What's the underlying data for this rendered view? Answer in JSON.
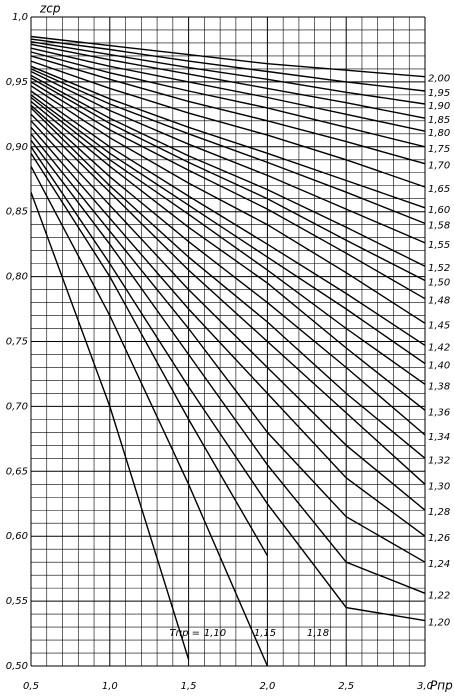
{
  "chart_data": {
    "type": "line",
    "y_label": "zср",
    "x_label": "Pпр",
    "annotation": "Tпр =",
    "x": [
      0.5,
      1.0,
      1.5,
      2.0,
      2.5,
      3.0
    ],
    "xlim": [
      0.5,
      3.0
    ],
    "xticks": [
      {
        "value": 0.5,
        "label": "0,5"
      },
      {
        "value": 1.0,
        "label": "1,0"
      },
      {
        "value": 1.5,
        "label": "1,5"
      },
      {
        "value": 2.0,
        "label": "2,0"
      },
      {
        "value": 2.5,
        "label": "2,5"
      },
      {
        "value": 3.0,
        "label": "3,0"
      }
    ],
    "ylim": [
      0.5,
      1.0
    ],
    "yticks": [
      {
        "value": 0.5,
        "label": "0,50"
      },
      {
        "value": 0.55,
        "label": "0,55"
      },
      {
        "value": 0.6,
        "label": "0,60"
      },
      {
        "value": 0.65,
        "label": "0,65"
      },
      {
        "value": 0.7,
        "label": "0,70"
      },
      {
        "value": 0.75,
        "label": "0,75"
      },
      {
        "value": 0.8,
        "label": "0,80"
      },
      {
        "value": 0.85,
        "label": "0,85"
      },
      {
        "value": 0.9,
        "label": "0,90"
      },
      {
        "value": 0.95,
        "label": "0,95"
      },
      {
        "value": 1.0,
        "label": "1,0"
      }
    ],
    "grid": true,
    "series": [
      {
        "name": "2,00",
        "color": "#000",
        "values": [
          0.985,
          0.978,
          0.971,
          0.964,
          0.959,
          0.954
        ]
      },
      {
        "name": "1,95",
        "color": "#000",
        "values": [
          0.983,
          0.975,
          0.966,
          0.958,
          0.95,
          0.943
        ]
      },
      {
        "name": "1,90",
        "color": "#000",
        "values": [
          0.981,
          0.971,
          0.961,
          0.952,
          0.942,
          0.933
        ]
      },
      {
        "name": "1,85",
        "color": "#000",
        "values": [
          0.979,
          0.967,
          0.956,
          0.945,
          0.934,
          0.922
        ]
      },
      {
        "name": "1,80",
        "color": "#000",
        "values": [
          0.976,
          0.962,
          0.95,
          0.938,
          0.925,
          0.912
        ]
      },
      {
        "name": "1,75",
        "color": "#000",
        "values": [
          0.973,
          0.957,
          0.943,
          0.93,
          0.915,
          0.9
        ]
      },
      {
        "name": "1,70",
        "color": "#000",
        "values": [
          0.97,
          0.952,
          0.935,
          0.92,
          0.904,
          0.887
        ]
      },
      {
        "name": "1,65",
        "color": "#000",
        "values": [
          0.966,
          0.945,
          0.926,
          0.909,
          0.89,
          0.869
        ]
      },
      {
        "name": "1,60",
        "color": "#000",
        "values": [
          0.962,
          0.937,
          0.915,
          0.895,
          0.874,
          0.853
        ]
      },
      {
        "name": "1,58",
        "color": "#000",
        "values": [
          0.96,
          0.933,
          0.91,
          0.888,
          0.865,
          0.841
        ]
      },
      {
        "name": "1,55",
        "color": "#000",
        "values": [
          0.958,
          0.928,
          0.902,
          0.878,
          0.852,
          0.826
        ]
      },
      {
        "name": "1,52",
        "color": "#000",
        "values": [
          0.955,
          0.922,
          0.893,
          0.867,
          0.838,
          0.808
        ]
      },
      {
        "name": "1,50",
        "color": "#000",
        "values": [
          0.953,
          0.918,
          0.888,
          0.86,
          0.828,
          0.797
        ]
      },
      {
        "name": "1,48",
        "color": "#000",
        "values": [
          0.95,
          0.913,
          0.882,
          0.852,
          0.818,
          0.783
        ]
      },
      {
        "name": "1,45",
        "color": "#000",
        "values": [
          0.947,
          0.907,
          0.872,
          0.84,
          0.803,
          0.764
        ]
      },
      {
        "name": "1,42",
        "color": "#000",
        "values": [
          0.943,
          0.9,
          0.862,
          0.825,
          0.787,
          0.747
        ]
      },
      {
        "name": "1,40",
        "color": "#000",
        "values": [
          0.94,
          0.895,
          0.855,
          0.815,
          0.775,
          0.733
        ]
      },
      {
        "name": "1,38",
        "color": "#000",
        "values": [
          0.938,
          0.89,
          0.848,
          0.805,
          0.76,
          0.717
        ]
      },
      {
        "name": "1,36",
        "color": "#000",
        "values": [
          0.935,
          0.885,
          0.838,
          0.795,
          0.745,
          0.697
        ]
      },
      {
        "name": "1,34",
        "color": "#000",
        "values": [
          0.932,
          0.877,
          0.827,
          0.78,
          0.73,
          0.678
        ]
      },
      {
        "name": "1,32",
        "color": "#000",
        "values": [
          0.93,
          0.87,
          0.815,
          0.765,
          0.71,
          0.66
        ]
      },
      {
        "name": "1,30",
        "color": "#000",
        "values": [
          0.925,
          0.865,
          0.805,
          0.75,
          0.695,
          0.64
        ]
      },
      {
        "name": "1,28",
        "color": "#000",
        "values": [
          0.92,
          0.855,
          0.79,
          0.73,
          0.67,
          0.62
        ]
      },
      {
        "name": "1,26",
        "color": "#000",
        "values": [
          0.915,
          0.845,
          0.775,
          0.71,
          0.645,
          0.6
        ]
      },
      {
        "name": "1,24",
        "color": "#000",
        "values": [
          0.91,
          0.835,
          0.76,
          0.68,
          0.615,
          0.58
        ]
      },
      {
        "name": "1,22",
        "color": "#000",
        "values": [
          0.905,
          0.825,
          0.74,
          0.655,
          0.58,
          0.556
        ]
      },
      {
        "name": "1,20",
        "color": "#000",
        "values": [
          0.9,
          0.81,
          0.715,
          0.625,
          0.545,
          0.535
        ]
      },
      {
        "name": "1,18",
        "color": "#000",
        "values": [
          0.895,
          0.8,
          0.69,
          0.585,
          null,
          null
        ]
      },
      {
        "name": "1,15",
        "color": "#000",
        "values": [
          0.885,
          0.77,
          0.64,
          0.5,
          null,
          null
        ]
      },
      {
        "name": "1,10",
        "color": "#000",
        "values": [
          0.865,
          0.7,
          0.505,
          null,
          null,
          null
        ]
      }
    ]
  }
}
